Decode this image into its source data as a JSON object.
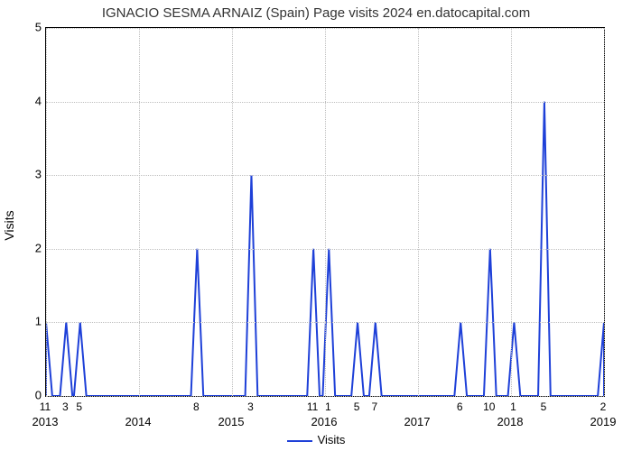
{
  "title": "IGNACIO SESMA ARNAIZ (Spain) Page visits 2024 en.datocapital.com",
  "chart": {
    "type": "line",
    "series_name": "Visits",
    "series_color": "#1e40d8",
    "line_width": 2,
    "background_color": "#ffffff",
    "grid_color": "#bfbfbf",
    "border_color": "#000000",
    "ylabel": "Visits",
    "ylim": [
      0,
      5
    ],
    "yticks": [
      0,
      1,
      2,
      3,
      4,
      5
    ],
    "x_domain_months": 72,
    "year_ticks": [
      {
        "month_index": 0,
        "label": "2013"
      },
      {
        "month_index": 12,
        "label": "2014"
      },
      {
        "month_index": 24,
        "label": "2015"
      },
      {
        "month_index": 36,
        "label": "2016"
      },
      {
        "month_index": 48,
        "label": "2017"
      },
      {
        "month_index": 60,
        "label": "2018"
      },
      {
        "month_index": 72,
        "label": "2019"
      }
    ],
    "month_minor_ticks": [
      11,
      3,
      5,
      8,
      3,
      11,
      1,
      5,
      7,
      6,
      10,
      1,
      5,
      2
    ],
    "spikes": [
      {
        "month_index": 0,
        "value": 1,
        "label": "11"
      },
      {
        "month_index": 2.6,
        "value": 1,
        "label": "3"
      },
      {
        "month_index": 4.4,
        "value": 1,
        "label": "5"
      },
      {
        "month_index": 19.5,
        "value": 2,
        "label": "8"
      },
      {
        "month_index": 26.5,
        "value": 3,
        "label": "3"
      },
      {
        "month_index": 34.5,
        "value": 2,
        "label": "11"
      },
      {
        "month_index": 36.5,
        "value": 2,
        "label": "1"
      },
      {
        "month_index": 40.2,
        "value": 1,
        "label": "5"
      },
      {
        "month_index": 42.5,
        "value": 1,
        "label": "7"
      },
      {
        "month_index": 53.5,
        "value": 1,
        "label": "6"
      },
      {
        "month_index": 57.3,
        "value": 2,
        "label": "10"
      },
      {
        "month_index": 60.4,
        "value": 1,
        "label": "1"
      },
      {
        "month_index": 64.3,
        "value": 4,
        "label": "5"
      },
      {
        "month_index": 72,
        "value": 1,
        "label": "2"
      }
    ]
  }
}
